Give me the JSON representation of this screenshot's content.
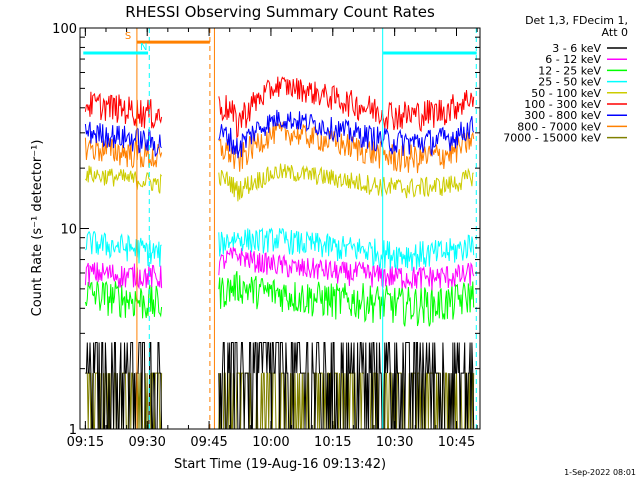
{
  "chart_data": {
    "type": "line",
    "title": "RHESSI Observing Summary Count Rates",
    "xlabel": "Start Time (19-Aug-16 09:13:42)",
    "ylabel": "Count Rate (s⁻¹ detector⁻¹)",
    "yscale": "log",
    "ylim": [
      1,
      100
    ],
    "xlim_minutes": [
      0,
      97
    ],
    "x_ticks": [
      "09:15",
      "09:30",
      "09:45",
      "10:00",
      "10:15",
      "10:30",
      "10:45"
    ],
    "y_ticks": [
      "1",
      "10",
      "100"
    ],
    "legend_header": [
      "Det 1,3, FDecim 1,",
      "Att 0"
    ],
    "legend_position": "right",
    "grid": false,
    "series": [
      {
        "name": "3 - 6 keV",
        "color": "#000000",
        "level_min": 1.0,
        "level_max": 3.2,
        "x_min": [
          1.3,
          6,
          11,
          14,
          17,
          19,
          33,
          36,
          38,
          43,
          48,
          53,
          58,
          63,
          68,
          73,
          77,
          81,
          86,
          90,
          93,
          95
        ],
        "y_min": [
          1.8,
          1.9,
          1.7,
          1.8,
          1.6,
          1.5,
          2.5,
          2.6,
          2.7,
          2.7,
          2.8,
          2.6,
          2.7,
          2.6,
          2.2,
          2.0,
          2.0,
          1.9,
          1.9,
          1.9,
          2.3,
          3.0
        ]
      },
      {
        "name": "6 - 12 keV",
        "color": "#ff00ff",
        "level_min": 5.0,
        "level_max": 8.0,
        "x_min": [
          1.3,
          6,
          11,
          14,
          17,
          19,
          33,
          36,
          38,
          43,
          48,
          53,
          58,
          63,
          68,
          73,
          77,
          81,
          86,
          90,
          93,
          95
        ],
        "y_min": [
          6.0,
          6.0,
          5.8,
          5.9,
          5.8,
          5.7,
          6.4,
          7.2,
          7.4,
          6.8,
          6.6,
          6.3,
          6.3,
          6.0,
          6.0,
          5.8,
          5.8,
          5.7,
          5.7,
          5.8,
          5.8,
          6.0
        ]
      },
      {
        "name": "12 - 25 keV",
        "color": "#00ff00",
        "level_min": 2.8,
        "level_max": 6.2,
        "x_min": [
          1.3,
          6,
          11,
          14,
          17,
          19,
          33,
          36,
          38,
          43,
          48,
          53,
          58,
          63,
          68,
          73,
          77,
          81,
          86,
          90,
          93,
          95
        ],
        "y_min": [
          4.8,
          4.6,
          4.5,
          4.4,
          4.3,
          4.2,
          4.8,
          5.0,
          5.2,
          4.9,
          4.8,
          4.6,
          4.5,
          4.4,
          4.4,
          4.3,
          4.2,
          4.2,
          4.2,
          4.3,
          4.5,
          4.7
        ]
      },
      {
        "name": "25 - 50 keV",
        "color": "#00ffff",
        "level_min": 6.5,
        "level_max": 11.0,
        "x_min": [
          1.3,
          6,
          11,
          14,
          17,
          19,
          33,
          36,
          38,
          43,
          48,
          53,
          58,
          63,
          68,
          73,
          77,
          81,
          86,
          90,
          93,
          95
        ],
        "y_min": [
          8.6,
          8.3,
          8.1,
          7.9,
          7.7,
          7.5,
          8.2,
          8.8,
          9.0,
          8.7,
          8.9,
          8.5,
          8.3,
          8.0,
          7.9,
          7.6,
          7.5,
          7.4,
          7.5,
          7.7,
          8.0,
          8.5
        ]
      },
      {
        "name": "50 - 100 keV",
        "color": "#cccc00",
        "level_min": 15.0,
        "level_max": 22.0,
        "x_min": [
          1.3,
          6,
          11,
          14,
          17,
          19,
          33,
          36,
          38,
          43,
          48,
          53,
          58,
          63,
          68,
          73,
          77,
          81,
          86,
          90,
          93,
          95
        ],
        "y_min": [
          18.8,
          18.3,
          17.8,
          17.5,
          17.2,
          16.8,
          18.0,
          17.5,
          15.5,
          17.5,
          19.2,
          18.8,
          18.3,
          17.6,
          17.0,
          16.3,
          16.0,
          16.0,
          16.2,
          16.6,
          17.4,
          18.2
        ]
      },
      {
        "name": "100 - 300 keV",
        "color": "#ff0000",
        "level_min": 36.0,
        "level_max": 60.0,
        "x_min": [
          1.3,
          6,
          11,
          14,
          17,
          19,
          33,
          36,
          38,
          43,
          48,
          53,
          58,
          63,
          68,
          73,
          77,
          81,
          86,
          90,
          93,
          95
        ],
        "y_min": [
          42.0,
          41.0,
          39.5,
          38.5,
          37.5,
          37.0,
          41.0,
          40.0,
          33.5,
          44.0,
          52.0,
          50.0,
          47.0,
          44.0,
          41.0,
          38.5,
          37.0,
          37.0,
          38.0,
          40.0,
          43.0,
          46.0
        ]
      },
      {
        "name": "300 - 800 keV",
        "color": "#0000ff",
        "level_min": 25.0,
        "level_max": 40.0,
        "x_min": [
          1.3,
          6,
          11,
          14,
          17,
          19,
          33,
          36,
          38,
          43,
          48,
          53,
          58,
          63,
          68,
          73,
          77,
          81,
          86,
          90,
          93,
          95
        ],
        "y_min": [
          30.5,
          29.5,
          28.5,
          27.8,
          27.0,
          26.5,
          30.0,
          29.0,
          25.0,
          31.5,
          35.5,
          34.5,
          33.0,
          31.0,
          29.5,
          28.0,
          27.0,
          27.0,
          27.5,
          28.5,
          30.5,
          32.5
        ]
      },
      {
        "name": "800 - 7000 keV",
        "color": "#ff8000",
        "level_min": 20.0,
        "level_max": 34.0,
        "x_min": [
          1.3,
          6,
          11,
          14,
          17,
          19,
          33,
          36,
          38,
          43,
          48,
          53,
          58,
          63,
          68,
          73,
          77,
          81,
          86,
          90,
          93,
          95
        ],
        "y_min": [
          25.5,
          24.8,
          24.0,
          23.5,
          23.0,
          22.5,
          25.5,
          24.5,
          21.5,
          27.0,
          30.5,
          29.5,
          28.0,
          26.5,
          25.0,
          23.5,
          22.5,
          22.5,
          23.0,
          24.0,
          26.0,
          28.0
        ]
      },
      {
        "name": "7000 - 15000 keV",
        "color": "#808000",
        "level_min": 1.0,
        "level_max": 2.0,
        "x_min": [
          1.3,
          6,
          11,
          14,
          17,
          19,
          33,
          36,
          38,
          43,
          48,
          53,
          58,
          63,
          68,
          73,
          77,
          81,
          86,
          90,
          93,
          95
        ],
        "y_min": [
          1.5,
          1.5,
          1.5,
          1.5,
          1.5,
          1.5,
          1.5,
          1.5,
          1.5,
          1.5,
          1.5,
          1.5,
          1.5,
          1.5,
          1.5,
          1.5,
          1.5,
          1.5,
          1.5,
          1.5,
          1.5,
          1.5
        ]
      }
    ],
    "data_segments_min": [
      [
        1.3,
        19.8
      ],
      [
        33.5,
        95.5
      ]
    ],
    "flags": [
      {
        "label": "S",
        "color": "#ff8000",
        "x_start_min": 13.8,
        "x_end_min": 31.5,
        "y": 85
      },
      {
        "label": "N",
        "color": "#00ffff",
        "x_start_min": 0.8,
        "x_end_min": 16.5,
        "y": 75
      },
      {
        "label": "",
        "color": "#00ffff",
        "x_start_min": 73.5,
        "x_end_min": 96.2,
        "y": 75
      }
    ],
    "vertical_lines": [
      {
        "x_min": 13.8,
        "color": "#ff8000",
        "style": "solid"
      },
      {
        "x_min": 16.8,
        "color": "#00ffff",
        "style": "dashed"
      },
      {
        "x_min": 31.5,
        "color": "#ff8000",
        "style": "dashed"
      },
      {
        "x_min": 32.6,
        "color": "#ff8000",
        "style": "solid"
      },
      {
        "x_min": 73.4,
        "color": "#00ffff",
        "style": "solid"
      },
      {
        "x_min": 96.1,
        "color": "#00ffff",
        "style": "dashed"
      }
    ],
    "footer": "1-Sep-2022 08:01"
  }
}
